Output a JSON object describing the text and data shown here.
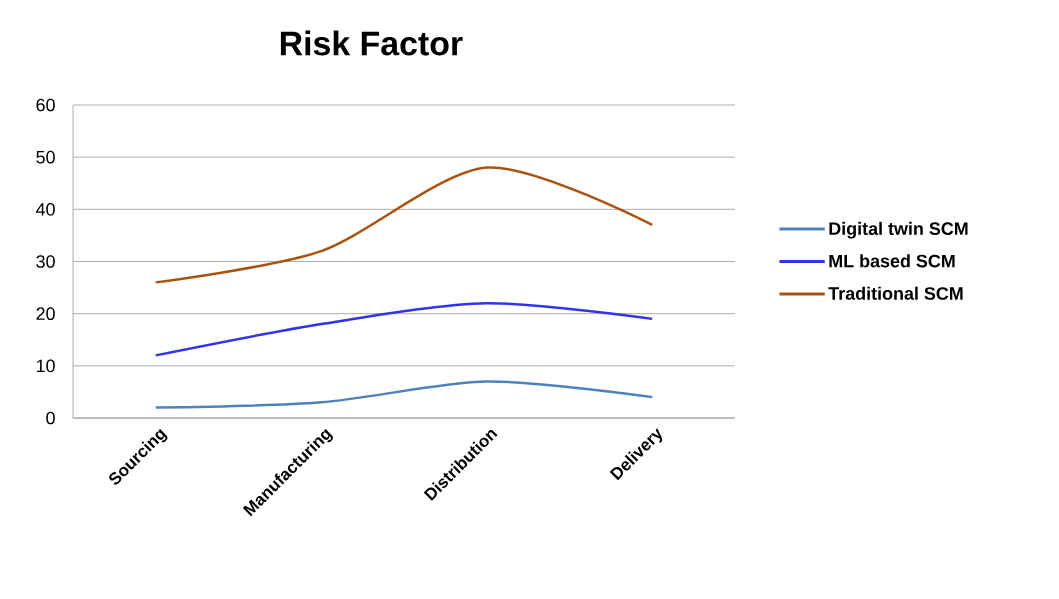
{
  "chart_data": {
    "type": "line",
    "title": "Risk Factor",
    "categories": [
      "Sourcing",
      "Manufacturing",
      "Distribution",
      "Delivery"
    ],
    "series": [
      {
        "name": "Digital twin SCM",
        "color": "#4f81bd",
        "values": [
          2,
          3,
          7,
          4
        ]
      },
      {
        "name": "ML based SCM",
        "color": "#3333ee",
        "values": [
          12,
          18,
          22,
          19
        ]
      },
      {
        "name": "Traditional SCM",
        "color": "#a9530f",
        "values": [
          26,
          32,
          48,
          37
        ]
      }
    ],
    "ylim": [
      0,
      60
    ],
    "yticks": [
      0,
      10,
      20,
      30,
      40,
      50,
      60
    ],
    "grid": "y",
    "legend": "right"
  }
}
